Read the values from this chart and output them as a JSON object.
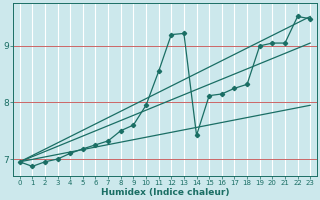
{
  "xlabel": "Humidex (Indice chaleur)",
  "bg_color": "#cce8ec",
  "grid_color": "#e8f8f8",
  "line_color": "#1a6e64",
  "red_line_color": "#cc6666",
  "xlim": [
    -0.5,
    23.5
  ],
  "ylim": [
    6.7,
    9.75
  ],
  "yticks": [
    7,
    8,
    9
  ],
  "xticks": [
    0,
    1,
    2,
    3,
    4,
    5,
    6,
    7,
    8,
    9,
    10,
    11,
    12,
    13,
    14,
    15,
    16,
    17,
    18,
    19,
    20,
    21,
    22,
    23
  ],
  "series1_x": [
    0,
    1,
    2,
    3,
    4,
    5,
    6,
    7,
    8,
    9,
    10,
    11,
    12,
    13,
    14,
    15,
    16,
    17,
    18,
    19,
    20,
    21,
    22,
    23
  ],
  "series1_y": [
    6.95,
    6.87,
    6.95,
    7.0,
    7.1,
    7.18,
    7.25,
    7.32,
    7.5,
    7.6,
    7.95,
    8.55,
    9.2,
    9.22,
    7.42,
    8.12,
    8.15,
    8.25,
    8.32,
    9.0,
    9.05,
    9.05,
    9.52,
    9.48
  ],
  "series2_x": [
    0,
    23
  ],
  "series2_y": [
    6.95,
    9.52
  ],
  "series3_x": [
    0,
    23
  ],
  "series3_y": [
    6.95,
    9.05
  ],
  "series4_x": [
    0,
    23
  ],
  "series4_y": [
    6.95,
    7.95
  ]
}
